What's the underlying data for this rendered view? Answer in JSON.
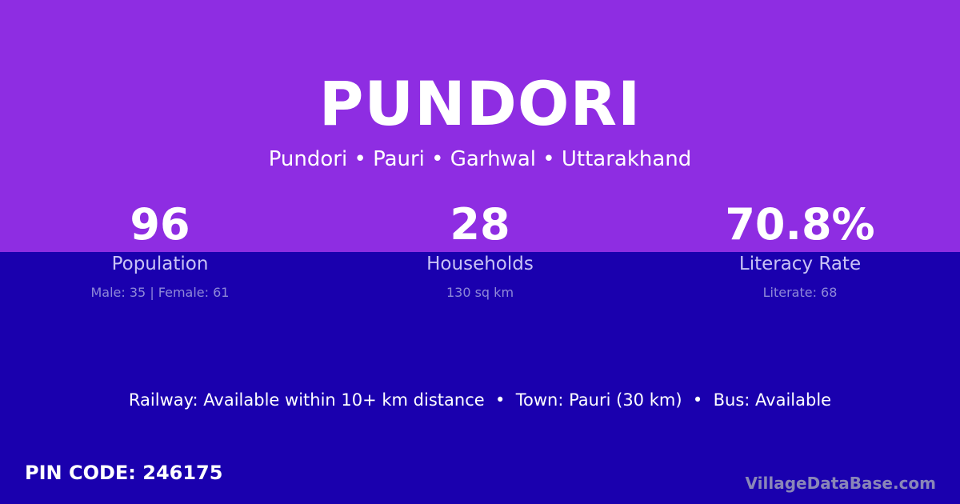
{
  "title": "PUNDORI",
  "subtitle": "Pundori • Pauri • Garhwal • Uttarakhand",
  "stats": [
    {
      "value": "96",
      "label": "Population",
      "detail": "Male: 35 | Female: 61"
    },
    {
      "value": "28",
      "label": "Households",
      "detail": "130 sq km"
    },
    {
      "value": "70.8%",
      "label": "Literacy Rate",
      "detail": "Literate: 68"
    }
  ],
  "info_line": "Railway: Available within 10+ km distance  •  Town: Pauri (30 km)  •  Bus: Available",
  "pin_code": "PIN CODE: 246175",
  "brand": "VillageDataBase.com",
  "colors": {
    "top": "#8e2de2",
    "bottom": "#1a00ae"
  }
}
